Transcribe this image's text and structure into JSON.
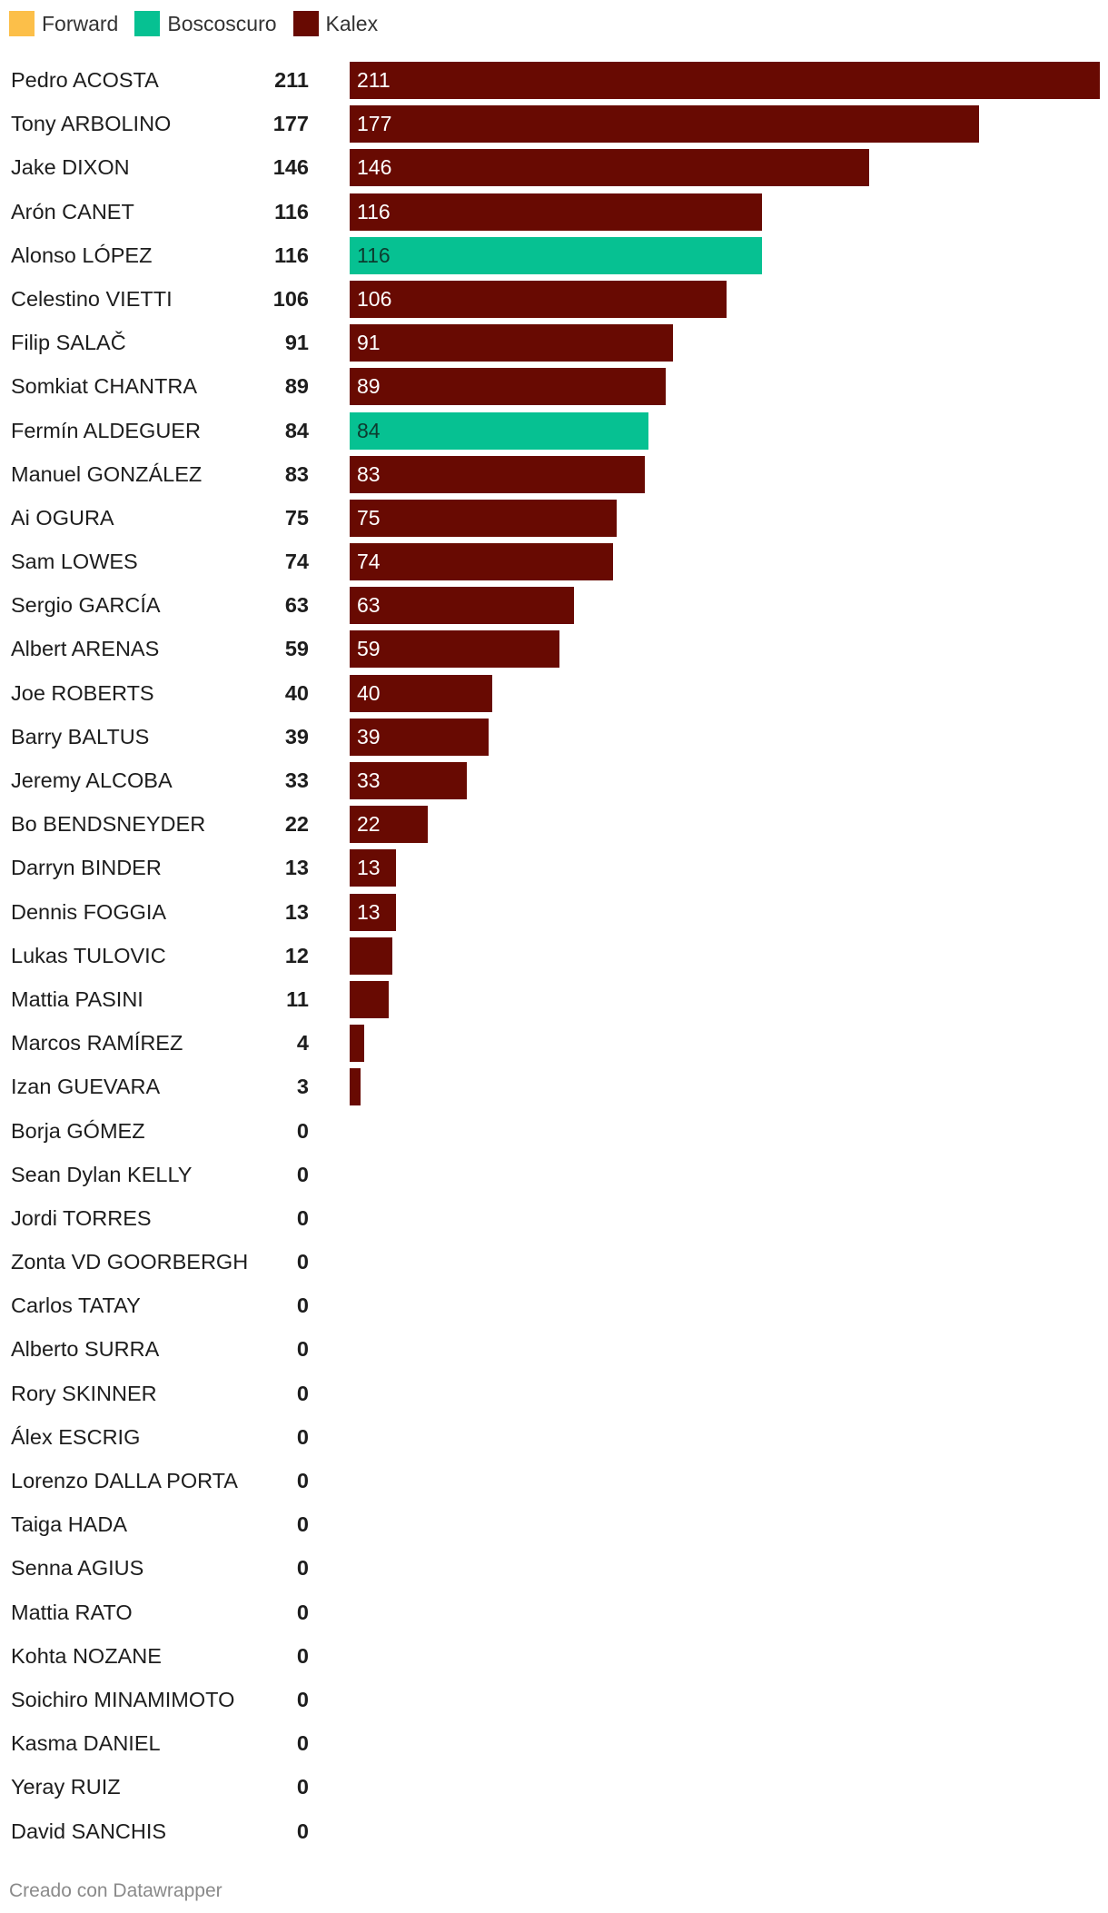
{
  "legend": [
    {
      "label": "Forward",
      "color": "#fcbf49"
    },
    {
      "label": "Boscoscuro",
      "color": "#06c192"
    },
    {
      "label": "Kalex",
      "color": "#680a02"
    }
  ],
  "footer": "Creado con Datawrapper",
  "chart_data": {
    "type": "bar",
    "orientation": "horizontal",
    "xlim": [
      0,
      211
    ],
    "label_min_value": 13,
    "label_colors": {
      "Kalex": "#ffffff",
      "Boscoscuro": "#0d3b2f",
      "Forward": "#333333"
    },
    "rows": [
      {
        "name": "Pedro ACOSTA",
        "value": 211,
        "team": "Kalex"
      },
      {
        "name": "Tony ARBOLINO",
        "value": 177,
        "team": "Kalex"
      },
      {
        "name": "Jake DIXON",
        "value": 146,
        "team": "Kalex"
      },
      {
        "name": "Arón CANET",
        "value": 116,
        "team": "Kalex"
      },
      {
        "name": "Alonso LÓPEZ",
        "value": 116,
        "team": "Boscoscuro"
      },
      {
        "name": "Celestino VIETTI",
        "value": 106,
        "team": "Kalex"
      },
      {
        "name": "Filip SALAČ",
        "value": 91,
        "team": "Kalex"
      },
      {
        "name": "Somkiat CHANTRA",
        "value": 89,
        "team": "Kalex"
      },
      {
        "name": "Fermín ALDEGUER",
        "value": 84,
        "team": "Boscoscuro"
      },
      {
        "name": "Manuel GONZÁLEZ",
        "value": 83,
        "team": "Kalex"
      },
      {
        "name": "Ai OGURA",
        "value": 75,
        "team": "Kalex"
      },
      {
        "name": "Sam LOWES",
        "value": 74,
        "team": "Kalex"
      },
      {
        "name": "Sergio GARCÍA",
        "value": 63,
        "team": "Kalex"
      },
      {
        "name": "Albert ARENAS",
        "value": 59,
        "team": "Kalex"
      },
      {
        "name": "Joe ROBERTS",
        "value": 40,
        "team": "Kalex"
      },
      {
        "name": "Barry BALTUS",
        "value": 39,
        "team": "Kalex"
      },
      {
        "name": "Jeremy ALCOBA",
        "value": 33,
        "team": "Kalex"
      },
      {
        "name": "Bo BENDSNEYDER",
        "value": 22,
        "team": "Kalex"
      },
      {
        "name": "Darryn BINDER",
        "value": 13,
        "team": "Kalex"
      },
      {
        "name": "Dennis FOGGIA",
        "value": 13,
        "team": "Kalex"
      },
      {
        "name": "Lukas TULOVIC",
        "value": 12,
        "team": "Kalex"
      },
      {
        "name": "Mattia PASINI",
        "value": 11,
        "team": "Kalex"
      },
      {
        "name": "Marcos RAMÍREZ",
        "value": 4,
        "team": "Kalex"
      },
      {
        "name": "Izan GUEVARA",
        "value": 3,
        "team": "Kalex"
      },
      {
        "name": "Borja GÓMEZ",
        "value": 0,
        "team": "Kalex"
      },
      {
        "name": "Sean Dylan KELLY",
        "value": 0,
        "team": "Kalex"
      },
      {
        "name": "Jordi TORRES",
        "value": 0,
        "team": "Kalex"
      },
      {
        "name": "Zonta VD GOORBERGH",
        "value": 0,
        "team": "Kalex"
      },
      {
        "name": "Carlos TATAY",
        "value": 0,
        "team": "Kalex"
      },
      {
        "name": "Alberto SURRA",
        "value": 0,
        "team": "Kalex"
      },
      {
        "name": "Rory SKINNER",
        "value": 0,
        "team": "Kalex"
      },
      {
        "name": "Álex ESCRIG",
        "value": 0,
        "team": "Kalex"
      },
      {
        "name": "Lorenzo DALLA PORTA",
        "value": 0,
        "team": "Kalex"
      },
      {
        "name": "Taiga HADA",
        "value": 0,
        "team": "Kalex"
      },
      {
        "name": "Senna AGIUS",
        "value": 0,
        "team": "Kalex"
      },
      {
        "name": "Mattia RATO",
        "value": 0,
        "team": "Kalex"
      },
      {
        "name": "Kohta NOZANE",
        "value": 0,
        "team": "Kalex"
      },
      {
        "name": "Soichiro MINAMIMOTO",
        "value": 0,
        "team": "Kalex"
      },
      {
        "name": "Kasma DANIEL",
        "value": 0,
        "team": "Kalex"
      },
      {
        "name": "Yeray RUIZ",
        "value": 0,
        "team": "Kalex"
      },
      {
        "name": "David SANCHIS",
        "value": 0,
        "team": "Kalex"
      }
    ]
  }
}
